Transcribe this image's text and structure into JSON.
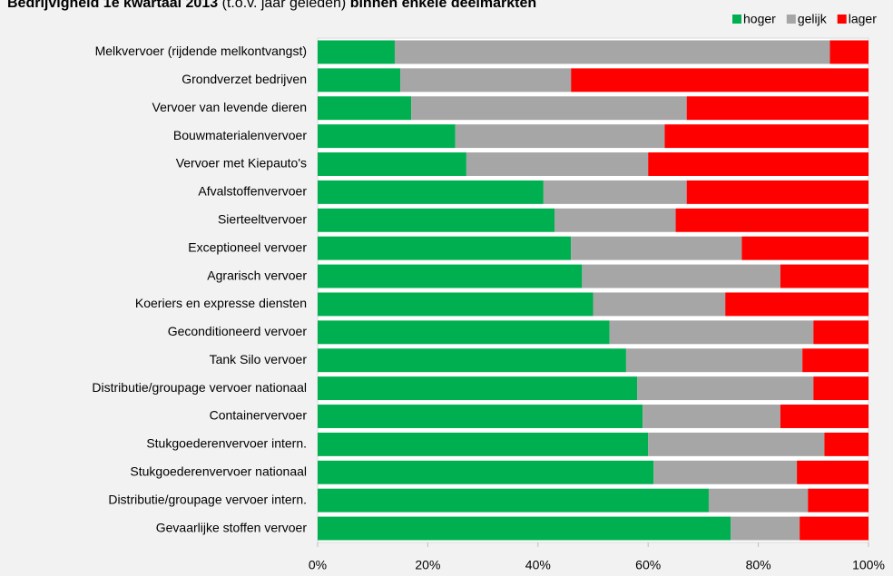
{
  "chart_data": {
    "type": "stacked_barh",
    "title_parts": [
      "Bedrijvigheid 1e kwartaal 2013",
      "(t.o.v. jaar geleden)",
      "binnen enkele deelmarkten"
    ],
    "categories": [
      "Melkvervoer (rijdende melkontvangst)",
      "Grondverzet bedrijven",
      "Vervoer van levende dieren",
      "Bouwmaterialenvervoer",
      "Vervoer met Kiepauto's",
      "Afvalstoffenvervoer",
      "Sierteeltvervoer",
      "Exceptioneel vervoer",
      "Agrarisch vervoer",
      "Koeriers en expresse diensten",
      "Geconditioneerd vervoer",
      "Tank Silo vervoer",
      "Distributie/groupage vervoer nationaal",
      "Containervervoer",
      "Stukgoederenvervoer intern.",
      "Stukgoederenvervoer nationaal",
      "Distributie/groupage vervoer intern.",
      "Gevaarlijke stoffen vervoer"
    ],
    "series": [
      {
        "name": "hoger",
        "color": "#00b050",
        "values": [
          14,
          15,
          17,
          25,
          27,
          41,
          43,
          46,
          48,
          50,
          53,
          56,
          58,
          59,
          60,
          61,
          71,
          75
        ]
      },
      {
        "name": "gelijk",
        "color": "#a6a6a6",
        "values": [
          79,
          31,
          50,
          38,
          33,
          26,
          22,
          31,
          36,
          24,
          37,
          32,
          32,
          25,
          32,
          26,
          18,
          12.5
        ]
      },
      {
        "name": "lager",
        "color": "#ff0000",
        "values": [
          7,
          54,
          33,
          37,
          40,
          33,
          35,
          23,
          16,
          26,
          10,
          12,
          10,
          16,
          8,
          13,
          11,
          12.5
        ]
      }
    ],
    "xlim": [
      0,
      100
    ],
    "xticks": [
      {
        "value": 0,
        "label": "0%"
      },
      {
        "value": 20,
        "label": "20%"
      },
      {
        "value": 40,
        "label": "40%"
      },
      {
        "value": 60,
        "label": "60%"
      },
      {
        "value": 80,
        "label": "80%"
      },
      {
        "value": 100,
        "label": "100%"
      }
    ],
    "legend": "top-right"
  }
}
